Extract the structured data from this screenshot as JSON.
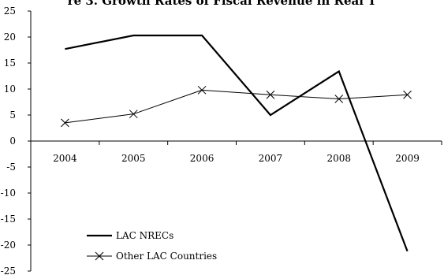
{
  "chart_data": {
    "type": "line",
    "title": "re 3. Growth Rates of Fiscal Revenue in Real T",
    "xlabel": "",
    "ylabel": "",
    "categories": [
      "2004",
      "2005",
      "2006",
      "2007",
      "2008",
      "2009"
    ],
    "y_ticks": [
      "25",
      "20",
      "15",
      "10",
      "5",
      "0",
      "-5",
      "-10",
      "-15",
      "-20",
      "-25"
    ],
    "ylim": [
      -25,
      25
    ],
    "grid": false,
    "legend_position": "bottom-left",
    "series": [
      {
        "name": "LAC NRECs",
        "values": [
          17.7,
          20.3,
          20.3,
          5.0,
          13.4,
          -21.2
        ],
        "color": "#000000",
        "marker": "none"
      },
      {
        "name": "Other LAC Countries",
        "values": [
          3.5,
          5.2,
          9.8,
          8.9,
          8.1,
          8.9
        ],
        "color": "#000000",
        "marker": "x"
      }
    ]
  }
}
